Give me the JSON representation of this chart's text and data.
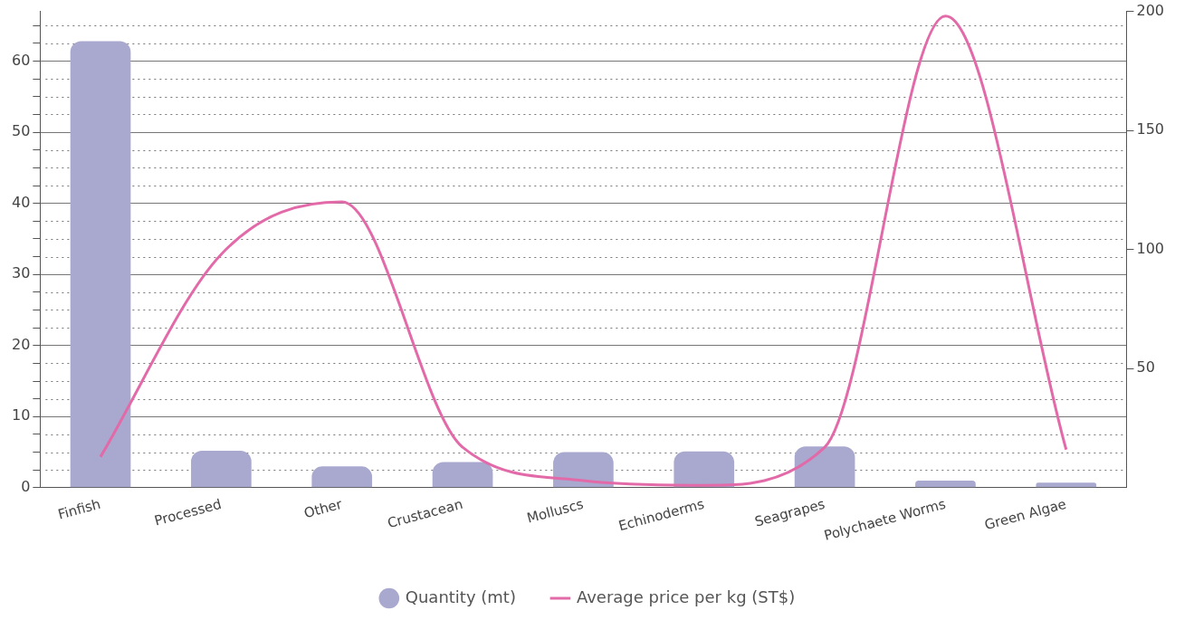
{
  "chart_data": {
    "type": "bar",
    "categories": [
      "Finfish",
      "Processed",
      "Other",
      "Crustacean",
      "Molluscs",
      "Echinoderms",
      "Seagrapes",
      "Polychaete Worms",
      "Green Algae"
    ],
    "series": [
      {
        "name": "Quantity (mt)",
        "color": "#a9a8cf",
        "values": [
          62.8,
          5.2,
          3,
          3.6,
          5,
          5.1,
          5.8,
          1,
          0.7
        ]
      },
      {
        "name": "Average price per kg (ST$)",
        "type": "line",
        "axis": "y2",
        "color": "#e36aa8",
        "values": [
          13,
          98,
          120,
          17,
          3,
          1,
          17,
          198,
          16
        ]
      }
    ],
    "ylim": [
      0,
      67
    ],
    "yticks": [
      0,
      {
        "value": 2.5,
        "label": null
      },
      {
        "value": 5,
        "label": null
      },
      {
        "value": 7.5,
        "label": null
      },
      10,
      {
        "value": 12.5,
        "label": null
      },
      {
        "value": 15,
        "label": null
      },
      {
        "value": 17.5,
        "label": null
      },
      20,
      {
        "value": 22.5,
        "label": null
      },
      {
        "value": 25,
        "label": null
      },
      {
        "value": 27.5,
        "label": null
      },
      30,
      {
        "value": 32.5,
        "label": null
      },
      {
        "value": 35,
        "label": null
      },
      {
        "value": 37.5,
        "label": null
      },
      40,
      {
        "value": 42.5,
        "label": null
      },
      {
        "value": 45,
        "label": null
      },
      {
        "value": 47.5,
        "label": null
      },
      50,
      {
        "value": 52.5,
        "label": null
      },
      {
        "value": 55,
        "label": null
      },
      {
        "value": 57.5,
        "label": null
      },
      60,
      {
        "value": 62.5,
        "label": null
      },
      {
        "value": 65,
        "label": null
      }
    ],
    "y2lim": [
      0,
      200
    ],
    "y2ticks": [
      50,
      100,
      150,
      200
    ],
    "grid": "y",
    "legend": "bottom",
    "marker": "none",
    "line_style": "solid"
  }
}
